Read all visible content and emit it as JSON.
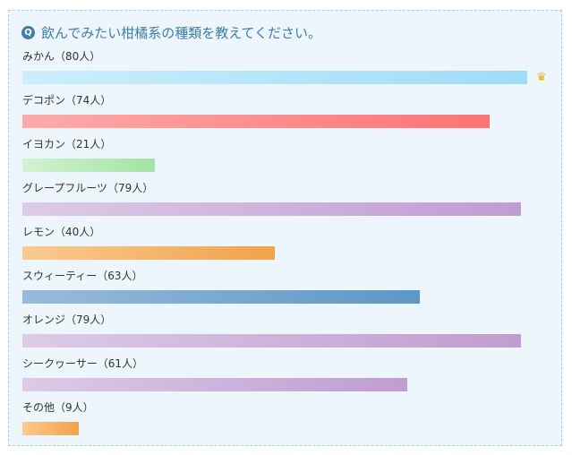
{
  "question": {
    "icon": "Q",
    "text": "飲んでみたい柑橘系の種類を教えてください。"
  },
  "chart_data": {
    "type": "bar",
    "orientation": "horizontal",
    "categories": [
      "みかん",
      "デコポン",
      "イヨカン",
      "グレープフルーツ",
      "レモン",
      "スウィーティー",
      "オレンジ",
      "シークヮーサー",
      "その他"
    ],
    "values": [
      80,
      74,
      21,
      79,
      40,
      63,
      79,
      61,
      9
    ],
    "unit": "人",
    "top_marker_icon": "crown-icon",
    "bar_colors": [
      [
        "#cdeefc",
        "#9fdcf6"
      ],
      [
        "#ffaaaa",
        "#ff7373"
      ],
      [
        "#d2f2d2",
        "#a3e3a3"
      ],
      [
        "#dccbe6",
        "#c09cd2"
      ],
      [
        "#f9cb90",
        "#f2a24a"
      ],
      [
        "#99bbdb",
        "#5c97c6"
      ],
      [
        "#dccbe6",
        "#c09cd2"
      ],
      [
        "#dccbe6",
        "#c09cd2"
      ],
      [
        "#f9cb90",
        "#f2a24a"
      ]
    ]
  }
}
